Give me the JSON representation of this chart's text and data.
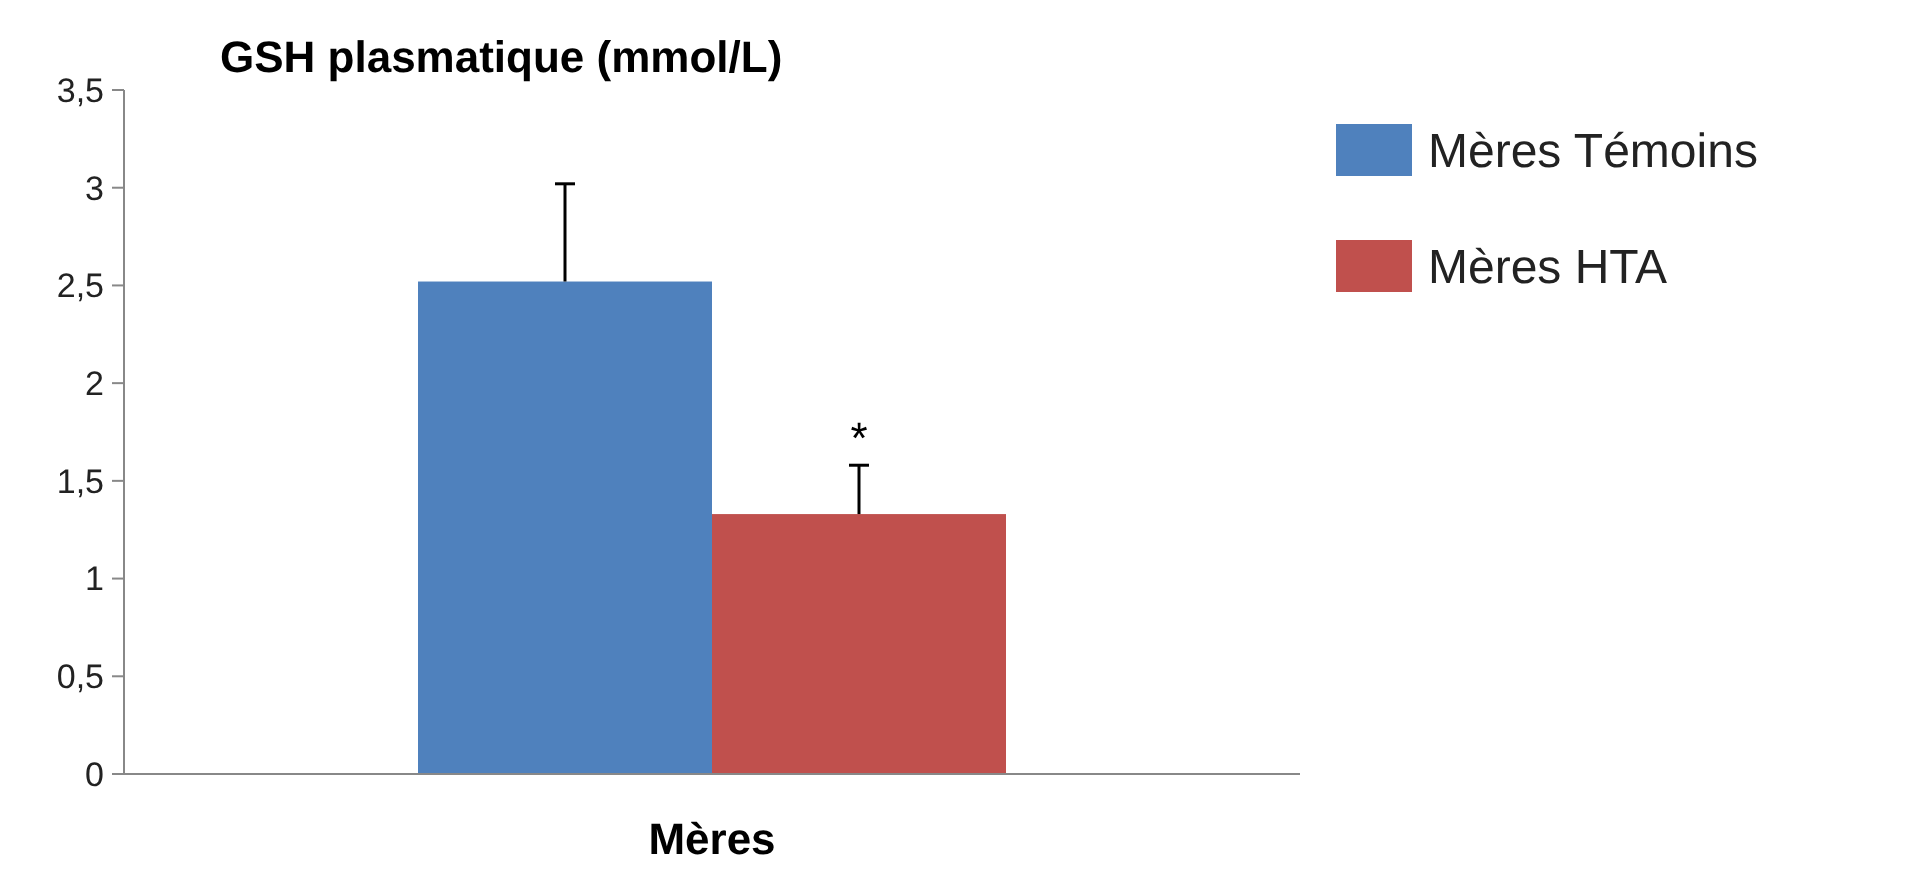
{
  "chart_data": {
    "type": "bar",
    "title": "GSH plasmatique (mmol/L)",
    "categories": [
      "Mères"
    ],
    "series": [
      {
        "name": "Mères Témoins",
        "color": "#4f81bd",
        "values": [
          2.52
        ],
        "errors": [
          [
            2.52,
            3.02
          ]
        ]
      },
      {
        "name": "Mères HTA",
        "color": "#c0504d",
        "values": [
          1.33
        ],
        "errors": [
          [
            1.33,
            1.58
          ]
        ]
      }
    ],
    "ylim": [
      0,
      3.5
    ],
    "yticks": [
      0,
      {
        "value": 0.5,
        "label": "0,5"
      },
      1,
      {
        "value": 1.5,
        "label": "1,5"
      },
      2,
      {
        "value": 2.5,
        "label": "2,5"
      },
      3,
      {
        "value": 3.5,
        "label": "3,5"
      }
    ],
    "annotations": [
      "*"
    ],
    "grid": false,
    "legend": "right"
  }
}
